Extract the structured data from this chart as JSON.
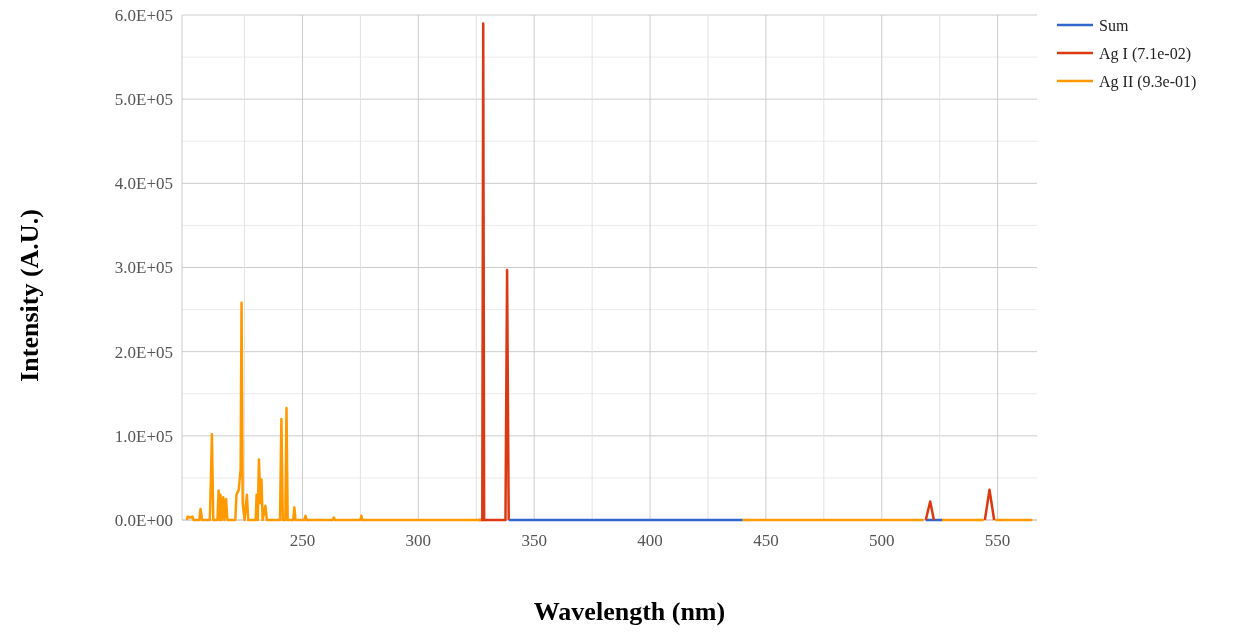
{
  "chart_data": {
    "type": "line",
    "xlabel": "Wavelength (nm)",
    "ylabel": "Intensity (A.U.)",
    "xlim": [
      198,
      567
    ],
    "xticks": [
      {
        "value": 225,
        "label": null
      },
      250,
      {
        "value": 275,
        "label": null
      },
      300,
      {
        "value": 325,
        "label": null
      },
      350,
      {
        "value": 375,
        "label": null
      },
      400,
      {
        "value": 425,
        "label": null
      },
      450,
      {
        "value": 475,
        "label": null
      },
      500,
      {
        "value": 525,
        "label": null
      },
      550
    ],
    "ylim": [
      0,
      600000
    ],
    "yticks": [
      {
        "value": 0,
        "label": "0.0E+00"
      },
      {
        "value": 50000,
        "label": null
      },
      {
        "value": 100000,
        "label": "1.0E+05"
      },
      {
        "value": 150000,
        "label": null
      },
      {
        "value": 200000,
        "label": "2.0E+05"
      },
      {
        "value": 250000,
        "label": null
      },
      {
        "value": 300000,
        "label": "3.0E+05"
      },
      {
        "value": 350000,
        "label": null
      },
      {
        "value": 400000,
        "label": "4.0E+05"
      },
      {
        "value": 450000,
        "label": null
      },
      {
        "value": 500000,
        "label": "5.0E+05"
      },
      {
        "value": 550000,
        "label": null
      },
      {
        "value": 600000,
        "label": "6.0E+05"
      }
    ],
    "grid": true,
    "legend": "right",
    "marker": "none",
    "line_style": "solid",
    "series": [
      {
        "name": "Sum",
        "color": "#3366cc",
        "x": [
          339,
          440,
          441,
          519,
          526
        ],
        "values": [
          0,
          0,
          null,
          0,
          0
        ]
      },
      {
        "name": "Ag I (7.1e-02)",
        "color": "#dc3912",
        "x": [
          326,
          327.6,
          328,
          328.4,
          330,
          337.6,
          338.3,
          339,
          340,
          519,
          520.9,
          522.5,
          523,
          544.5,
          546.5,
          548.5
        ],
        "values": [
          0,
          0,
          590000,
          0,
          0,
          0,
          297000,
          0,
          null,
          0,
          22000,
          0,
          null,
          0,
          36000,
          0
        ]
      },
      {
        "name": "Ag II (9.3e-01)",
        "color": "#ff9900",
        "x": [
          200,
          200.5,
          201.5,
          202.5,
          203,
          205.5,
          206,
          206.7,
          210,
          210.5,
          210.9,
          211.5,
          213.3,
          213.8,
          214.3,
          214.6,
          215.1,
          215.8,
          216.3,
          217,
          217.6,
          221,
          221.5,
          222.5,
          223.3,
          223.7,
          224.2,
          225,
          226,
          226.6,
          229.8,
          230.2,
          230.7,
          231.2,
          231.8,
          232.3,
          232.8,
          234,
          234.6,
          240.3,
          240.9,
          241.5,
          242.6,
          243.1,
          243.6,
          246,
          246.5,
          247,
          250.8,
          251.3,
          251.8,
          263,
          263.5,
          264,
          275,
          275.4,
          275.9,
          327,
          330,
          440,
          518,
          519,
          526,
          544,
          545,
          549,
          565
        ],
        "values": [
          0,
          4000,
          3000,
          4000,
          0,
          0,
          13000,
          0,
          0,
          50000,
          102000,
          0,
          0,
          35000,
          0,
          30000,
          0,
          27000,
          0,
          25000,
          0,
          0,
          30000,
          36000,
          60000,
          258000,
          20000,
          0,
          30000,
          0,
          0,
          30000,
          0,
          72000,
          20000,
          48000,
          0,
          17000,
          0,
          0,
          120000,
          0,
          0,
          133000,
          0,
          0,
          15000,
          0,
          0,
          5000,
          0,
          0,
          3000,
          0,
          0,
          5000,
          0,
          0,
          null,
          0,
          0,
          null,
          0,
          0,
          null,
          0,
          0
        ]
      }
    ]
  }
}
